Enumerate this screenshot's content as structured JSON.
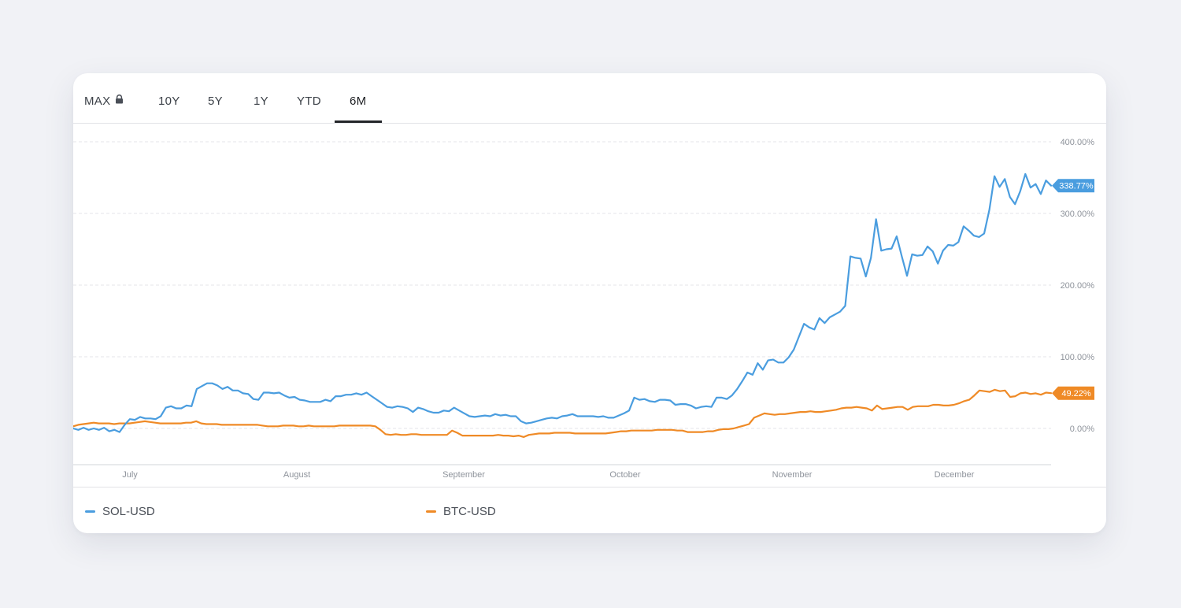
{
  "tabs": [
    {
      "label": "MAX",
      "locked": true
    },
    {
      "label": "10Y"
    },
    {
      "label": "5Y"
    },
    {
      "label": "1Y"
    },
    {
      "label": "YTD"
    },
    {
      "label": "6M",
      "active": true
    }
  ],
  "icons": {
    "lock": "lock-icon"
  },
  "colors": {
    "sol": "#4a9ddf",
    "btc": "#ef8a26",
    "grid": "#e4e6ea",
    "axis_text": "#8e939b"
  },
  "chart_data": {
    "type": "line",
    "title": "",
    "xlabel": "",
    "ylabel": "",
    "x_tick_labels": [
      "July",
      "August",
      "September",
      "October",
      "November",
      "December"
    ],
    "y_tick_labels": [
      "400.00%",
      "300.00%",
      "200.00%",
      "100.00%",
      "0.00%"
    ],
    "y_ticks": [
      400,
      300,
      200,
      100,
      0
    ],
    "ylim": [
      -48,
      400
    ],
    "grid": true,
    "legend": "bottom",
    "series": [
      {
        "name": "SOL-USD",
        "last_label": "338.77%",
        "values": [
          0,
          -2,
          1,
          -2,
          0,
          -2,
          1,
          -4,
          -2,
          -5,
          5,
          13,
          12,
          16,
          14,
          14,
          13,
          17,
          29,
          31,
          28,
          28,
          32,
          31,
          55,
          59,
          63,
          63,
          60,
          55,
          58,
          53,
          53,
          49,
          48,
          41,
          40,
          50,
          50,
          49,
          50,
          46,
          43,
          44,
          40,
          39,
          37,
          37,
          37,
          40,
          38,
          45,
          45,
          47,
          47,
          49,
          47,
          50,
          45,
          40,
          35,
          30,
          29,
          31,
          30,
          28,
          23,
          29,
          27,
          24,
          22,
          22,
          25,
          24,
          29,
          25,
          21,
          17,
          16,
          17,
          18,
          17,
          20,
          18,
          19,
          17,
          17,
          10,
          7,
          8,
          10,
          12,
          14,
          15,
          14,
          17,
          18,
          20,
          17,
          17,
          17,
          17,
          16,
          17,
          15,
          15,
          18,
          21,
          25,
          43,
          40,
          41,
          38,
          37,
          40,
          40,
          39,
          33,
          34,
          34,
          32,
          28,
          30,
          31,
          30,
          43,
          43,
          41,
          46,
          55,
          66,
          78,
          75,
          91,
          82,
          95,
          96,
          92,
          92,
          99,
          110,
          128,
          146,
          141,
          138,
          154,
          147,
          155,
          159,
          163,
          171,
          240,
          238,
          237,
          212,
          238,
          292,
          248,
          250,
          251,
          268,
          240,
          213,
          243,
          241,
          242,
          254,
          247,
          230,
          248,
          256,
          255,
          260,
          282,
          276,
          269,
          267,
          272,
          305,
          352,
          337,
          348,
          323,
          313,
          331,
          355,
          336,
          341,
          327,
          346,
          338.77
        ]
      },
      {
        "name": "BTC-USD",
        "last_label": "49.22%",
        "values": [
          3,
          5,
          6,
          7,
          8,
          7,
          7,
          7,
          6,
          7,
          7,
          7,
          8,
          9,
          10,
          9,
          8,
          7,
          7,
          7,
          7,
          7,
          8,
          8,
          10,
          7,
          6,
          6,
          6,
          5,
          5,
          5,
          5,
          5,
          5,
          5,
          5,
          4,
          3,
          3,
          3,
          4,
          4,
          4,
          3,
          3,
          4,
          3,
          3,
          3,
          3,
          3,
          4,
          4,
          4,
          4,
          4,
          4,
          4,
          3,
          -2,
          -8,
          -9,
          -8,
          -9,
          -9,
          -8,
          -8,
          -9,
          -9,
          -9,
          -9,
          -9,
          -9,
          -3,
          -6,
          -10,
          -10,
          -10,
          -10,
          -10,
          -10,
          -10,
          -9,
          -10,
          -10,
          -11,
          -10,
          -12,
          -9,
          -8,
          -7,
          -7,
          -7,
          -6,
          -6,
          -6,
          -6,
          -7,
          -7,
          -7,
          -7,
          -7,
          -7,
          -7,
          -6,
          -5,
          -4,
          -4,
          -3,
          -3,
          -3,
          -3,
          -3,
          -2,
          -2,
          -2,
          -2,
          -3,
          -3,
          -5,
          -5,
          -5,
          -5,
          -4,
          -4,
          -2,
          -1,
          -1,
          0,
          2,
          4,
          6,
          15,
          18,
          21,
          20,
          19,
          20,
          20,
          21,
          22,
          23,
          23,
          24,
          23,
          23,
          24,
          25,
          26,
          28,
          29,
          29,
          30,
          29,
          28,
          25,
          32,
          27,
          28,
          29,
          30,
          30,
          26,
          30,
          31,
          31,
          31,
          33,
          33,
          32,
          32,
          33,
          35,
          38,
          40,
          46,
          53,
          52,
          51,
          54,
          52,
          53,
          44,
          45,
          49,
          50,
          48,
          49,
          47,
          50,
          49.22
        ]
      }
    ]
  }
}
